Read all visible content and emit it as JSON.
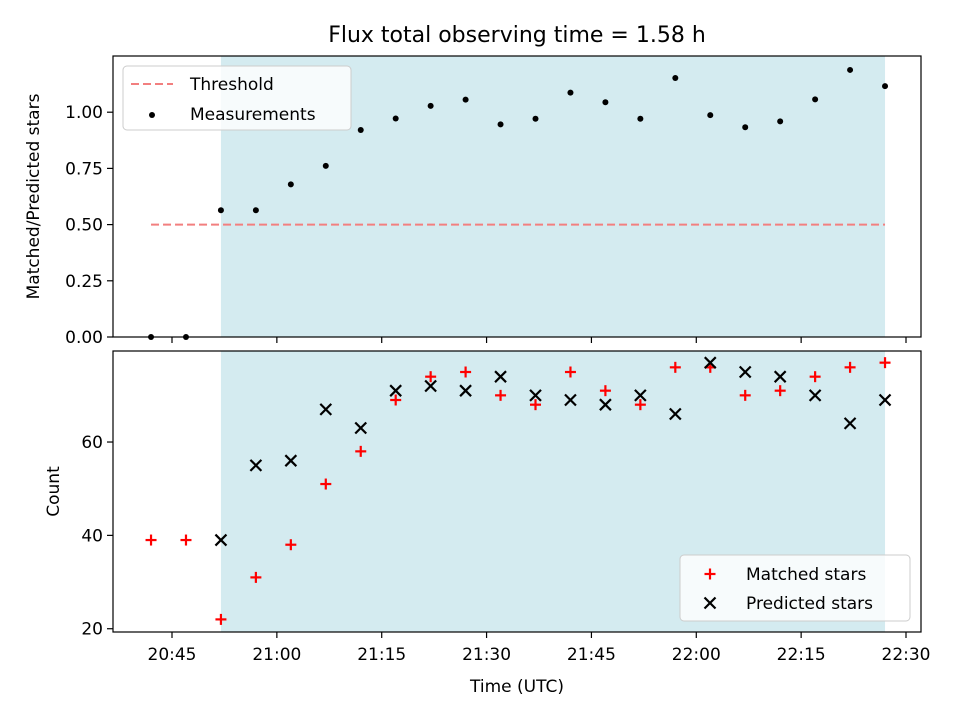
{
  "chart_data": [
    {
      "type": "scatter",
      "title": "Flux total observing time = 1.58 h",
      "xlabel": "",
      "ylabel": "Matched/Predicted stars",
      "ylim": [
        0,
        1.25
      ],
      "yticks": [
        0.0,
        0.25,
        0.5,
        0.75,
        1.0
      ],
      "ytick_labels": [
        "0.00",
        "0.25",
        "0.50",
        "0.75",
        "1.00"
      ],
      "legend_position": "upper-left",
      "highlight_span": {
        "start": "20:52",
        "end": "22:27",
        "color": "#d4ebf0"
      },
      "threshold": {
        "name": "Threshold",
        "value": 0.5,
        "from": "20:42",
        "to": "22:27",
        "color": "#f27f7f"
      },
      "series": [
        {
          "name": "Measurements",
          "color": "#000000",
          "x": [
            "20:42",
            "20:47",
            "20:52",
            "20:57",
            "21:02",
            "21:07",
            "21:12",
            "21:17",
            "21:22",
            "21:27",
            "21:32",
            "21:37",
            "21:42",
            "21:47",
            "21:52",
            "21:57",
            "22:02",
            "22:07",
            "22:12",
            "22:17",
            "22:22",
            "22:27"
          ],
          "y": [
            0.0,
            0.0,
            0.564,
            0.564,
            0.679,
            0.761,
            0.921,
            0.972,
            1.028,
            1.056,
            0.946,
            0.971,
            1.087,
            1.044,
            0.971,
            1.152,
            0.987,
            0.933,
            0.959,
            1.057,
            1.188,
            1.116
          ]
        }
      ]
    },
    {
      "type": "scatter",
      "title": "",
      "xlabel": "Time (UTC)",
      "ylabel": "Count",
      "xtick_labels": [
        "20:45",
        "21:00",
        "21:15",
        "21:30",
        "21:45",
        "22:00",
        "22:15",
        "22:30"
      ],
      "yticks": [
        20,
        40,
        60
      ],
      "ytick_labels": [
        "20",
        "40",
        "60"
      ],
      "ylim": [
        19.3,
        79.5
      ],
      "legend_position": "lower-right",
      "highlight_span": {
        "start": "20:52",
        "end": "22:27",
        "color": "#d4ebf0"
      },
      "series": [
        {
          "name": "Matched stars",
          "color": "#ff0000",
          "marker": "plus",
          "x": [
            "20:42",
            "20:47",
            "20:52",
            "20:57",
            "21:02",
            "21:07",
            "21:12",
            "21:17",
            "21:22",
            "21:27",
            "21:32",
            "21:37",
            "21:42",
            "21:47",
            "21:52",
            "21:57",
            "22:02",
            "22:07",
            "22:12",
            "22:17",
            "22:22",
            "22:27"
          ],
          "y": [
            39,
            39,
            22,
            31,
            38,
            51,
            58,
            69,
            74,
            75,
            70,
            68,
            75,
            71,
            68,
            76,
            76,
            70,
            71,
            74,
            76,
            77
          ]
        },
        {
          "name": "Predicted stars",
          "color": "#000000",
          "marker": "x",
          "x": [
            "20:52",
            "20:57",
            "21:02",
            "21:07",
            "21:12",
            "21:17",
            "21:22",
            "21:27",
            "21:32",
            "21:37",
            "21:42",
            "21:47",
            "21:52",
            "21:57",
            "22:02",
            "22:07",
            "22:12",
            "22:17",
            "22:22",
            "22:27"
          ],
          "y": [
            39,
            55,
            56,
            67,
            63,
            71,
            72,
            71,
            74,
            70,
            69,
            68,
            70,
            66,
            77,
            75,
            74,
            70,
            64,
            69
          ]
        }
      ]
    }
  ]
}
